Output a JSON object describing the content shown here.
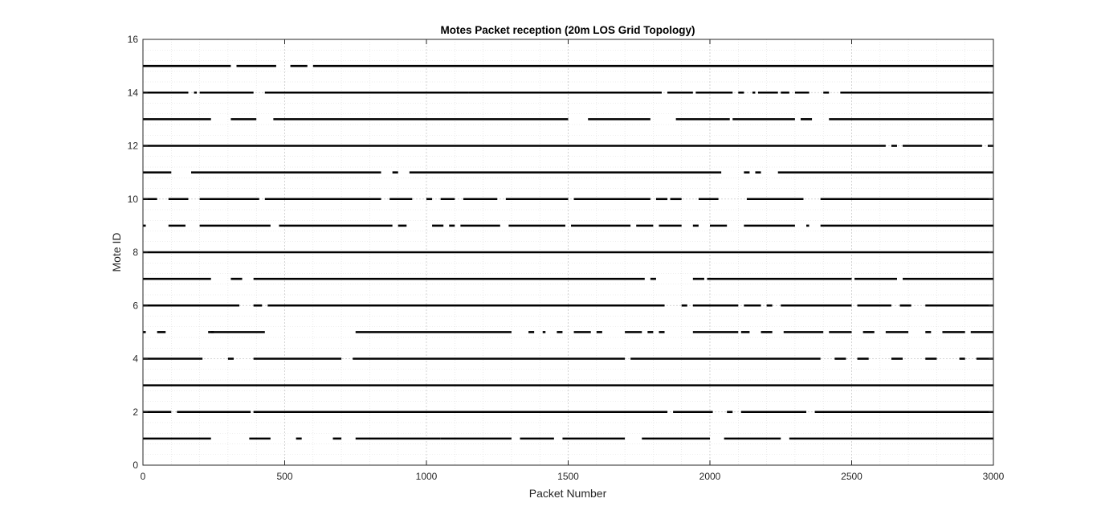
{
  "chart_data": {
    "type": "scatter",
    "title": "Motes Packet reception (20m LOS Grid Topology)",
    "xlabel": "Packet Number",
    "ylabel": "Mote ID",
    "xlim": [
      0,
      3000
    ],
    "ylim": [
      0,
      16
    ],
    "xticks": [
      0,
      500,
      1000,
      1500,
      2000,
      2500,
      3000
    ],
    "yticks": [
      0,
      2,
      4,
      6,
      8,
      10,
      12,
      14,
      16
    ],
    "grid": true,
    "minor_grid": true,
    "marker_color": "#000000",
    "series": [
      {
        "mote": 1,
        "received": [
          [
            0,
            240
          ],
          [
            375,
            450
          ],
          [
            540,
            560
          ],
          [
            670,
            700
          ],
          [
            750,
            1050
          ],
          [
            1050,
            1300
          ],
          [
            1330,
            1450
          ],
          [
            1480,
            1700
          ],
          [
            1760,
            2000
          ],
          [
            2050,
            2250
          ],
          [
            2280,
            3000
          ]
        ]
      },
      {
        "mote": 2,
        "received": [
          [
            0,
            100
          ],
          [
            120,
            380
          ],
          [
            390,
            1850
          ],
          [
            1870,
            2010
          ],
          [
            2060,
            2080
          ],
          [
            2110,
            2340
          ],
          [
            2370,
            3000
          ]
        ]
      },
      {
        "mote": 3,
        "received": [
          [
            0,
            3000
          ]
        ]
      },
      {
        "mote": 4,
        "received": [
          [
            0,
            210
          ],
          [
            300,
            320
          ],
          [
            390,
            700
          ],
          [
            740,
            1700
          ],
          [
            1720,
            2390
          ],
          [
            2440,
            2480
          ],
          [
            2520,
            2560
          ],
          [
            2640,
            2680
          ],
          [
            2760,
            2800
          ],
          [
            2880,
            2900
          ],
          [
            2940,
            3000
          ]
        ]
      },
      {
        "mote": 5,
        "received": [
          [
            0,
            10
          ],
          [
            50,
            80
          ],
          [
            230,
            250
          ],
          [
            240,
            430
          ],
          [
            750,
            1300
          ],
          [
            1360,
            1380
          ],
          [
            1410,
            1420
          ],
          [
            1460,
            1480
          ],
          [
            1520,
            1580
          ],
          [
            1600,
            1620
          ],
          [
            1700,
            1760
          ],
          [
            1780,
            1800
          ],
          [
            1820,
            1840
          ],
          [
            1940,
            2100
          ],
          [
            2110,
            2140
          ],
          [
            2180,
            2220
          ],
          [
            2260,
            2400
          ],
          [
            2420,
            2500
          ],
          [
            2540,
            2580
          ],
          [
            2620,
            2700
          ],
          [
            2760,
            2780
          ],
          [
            2820,
            2900
          ],
          [
            2920,
            3000
          ]
        ]
      },
      {
        "mote": 6,
        "received": [
          [
            0,
            340
          ],
          [
            390,
            420
          ],
          [
            440,
            1840
          ],
          [
            1900,
            1920
          ],
          [
            1940,
            2100
          ],
          [
            2120,
            2180
          ],
          [
            2200,
            2220
          ],
          [
            2250,
            2500
          ],
          [
            2520,
            2640
          ],
          [
            2670,
            2710
          ],
          [
            2760,
            3000
          ]
        ]
      },
      {
        "mote": 7,
        "received": [
          [
            0,
            240
          ],
          [
            310,
            350
          ],
          [
            390,
            1770
          ],
          [
            1790,
            1810
          ],
          [
            1940,
            1980
          ],
          [
            1990,
            2500
          ],
          [
            2510,
            2660
          ],
          [
            2680,
            3000
          ]
        ]
      },
      {
        "mote": 8,
        "received": [
          [
            0,
            3000
          ]
        ]
      },
      {
        "mote": 9,
        "received": [
          [
            0,
            10
          ],
          [
            90,
            150
          ],
          [
            200,
            450
          ],
          [
            480,
            880
          ],
          [
            900,
            930
          ],
          [
            1020,
            1060
          ],
          [
            1080,
            1100
          ],
          [
            1120,
            1260
          ],
          [
            1290,
            1490
          ],
          [
            1510,
            1720
          ],
          [
            1740,
            1800
          ],
          [
            1820,
            1900
          ],
          [
            1940,
            1960
          ],
          [
            2000,
            2060
          ],
          [
            2120,
            2300
          ],
          [
            2340,
            2350
          ],
          [
            2390,
            3000
          ]
        ]
      },
      {
        "mote": 10,
        "received": [
          [
            0,
            50
          ],
          [
            90,
            160
          ],
          [
            200,
            410
          ],
          [
            430,
            840
          ],
          [
            870,
            950
          ],
          [
            1000,
            1020
          ],
          [
            1050,
            1100
          ],
          [
            1130,
            1250
          ],
          [
            1280,
            1500
          ],
          [
            1520,
            1790
          ],
          [
            1810,
            1850
          ],
          [
            1860,
            1900
          ],
          [
            1960,
            2030
          ],
          [
            2130,
            2330
          ],
          [
            2390,
            3000
          ]
        ]
      },
      {
        "mote": 11,
        "received": [
          [
            0,
            100
          ],
          [
            170,
            840
          ],
          [
            880,
            900
          ],
          [
            940,
            2040
          ],
          [
            2120,
            2140
          ],
          [
            2160,
            2180
          ],
          [
            2240,
            3000
          ]
        ]
      },
      {
        "mote": 12,
        "received": [
          [
            0,
            2620
          ],
          [
            2640,
            2660
          ],
          [
            2680,
            2960
          ],
          [
            2980,
            3000
          ]
        ]
      },
      {
        "mote": 13,
        "received": [
          [
            0,
            240
          ],
          [
            310,
            400
          ],
          [
            460,
            1500
          ],
          [
            1570,
            1790
          ],
          [
            1880,
            2070
          ],
          [
            2080,
            2300
          ],
          [
            2320,
            2360
          ],
          [
            2420,
            3000
          ]
        ]
      },
      {
        "mote": 14,
        "received": [
          [
            0,
            160
          ],
          [
            180,
            190
          ],
          [
            200,
            390
          ],
          [
            430,
            1150
          ],
          [
            1150,
            1830
          ],
          [
            1850,
            1940
          ],
          [
            1950,
            2080
          ],
          [
            2100,
            2120
          ],
          [
            2150,
            2160
          ],
          [
            2170,
            2240
          ],
          [
            2250,
            2280
          ],
          [
            2300,
            2350
          ],
          [
            2400,
            2420
          ],
          [
            2460,
            3000
          ]
        ]
      },
      {
        "mote": 15,
        "received": [
          [
            0,
            310
          ],
          [
            330,
            470
          ],
          [
            520,
            580
          ],
          [
            600,
            3000
          ]
        ]
      }
    ]
  }
}
